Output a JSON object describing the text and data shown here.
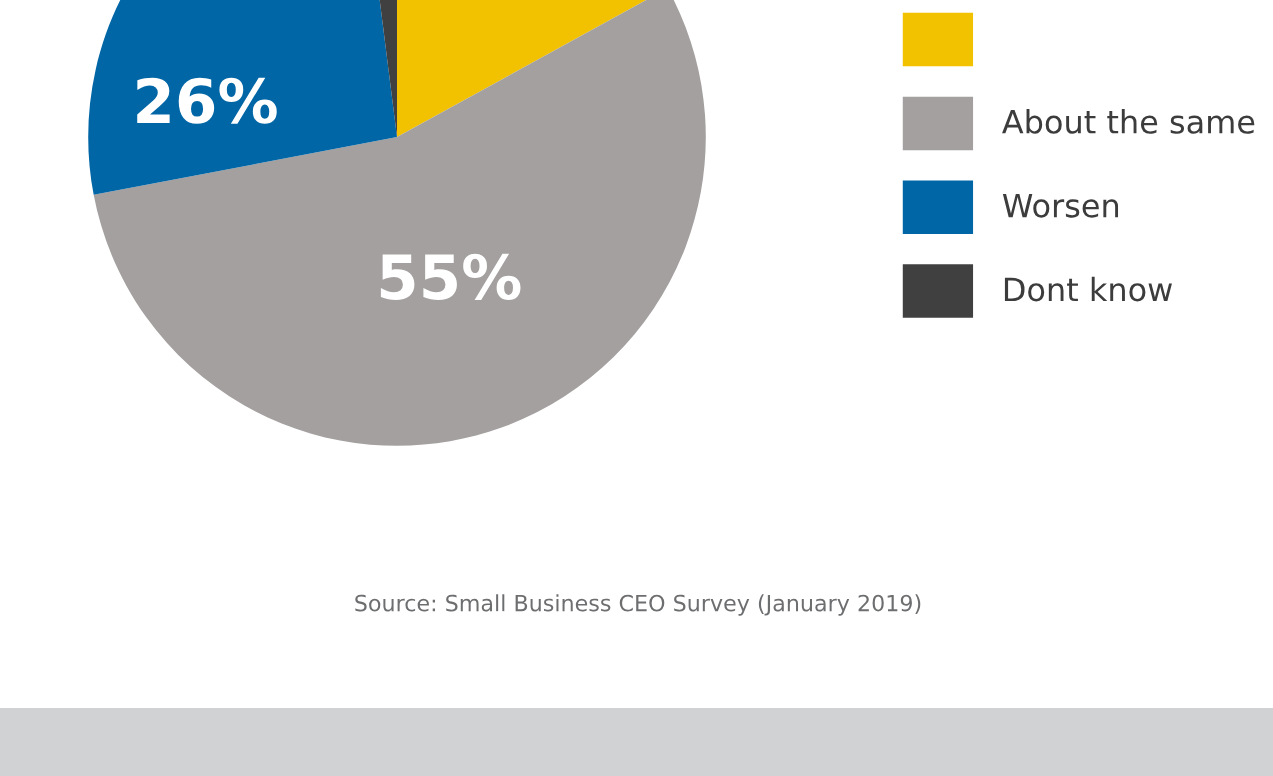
{
  "chart_data": {
    "type": "pie",
    "categories": [
      null,
      "About the same",
      "Worsen",
      "Dont know"
    ],
    "values": [
      17,
      55,
      26,
      2
    ],
    "colors": [
      "#f2c200",
      "#a3a09f",
      "#0066a6",
      "#404040"
    ],
    "value_labels": [
      null,
      "55%",
      "26%",
      null
    ],
    "legend": "right",
    "annotations": [
      "Source: Small Business CEO Survey (January 2019)"
    ]
  }
}
